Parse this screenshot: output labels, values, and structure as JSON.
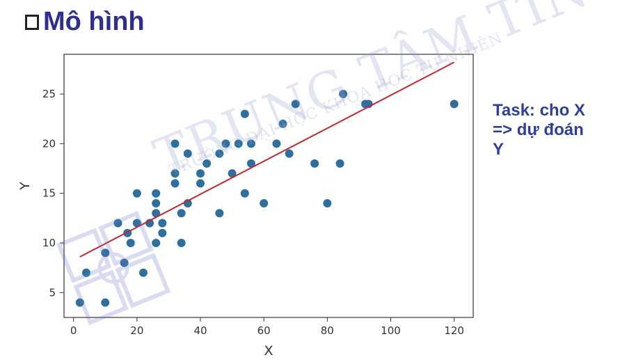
{
  "slide": {
    "title": "Mô hình",
    "task_lines": [
      "Task: cho X",
      "=> dự đoán",
      "Y"
    ]
  },
  "watermark": {
    "main_text": "TRUNG TÂM TIN HỌC",
    "sub_text": "TRƯỜNG ĐẠI HỌC KHOA HỌC TỰ NHIÊN"
  },
  "chart_data": {
    "type": "scatter",
    "xlabel": "X",
    "ylabel": "Y",
    "xlim": [
      -3,
      126
    ],
    "ylim": [
      2.5,
      29
    ],
    "xticks": [
      0,
      20,
      40,
      60,
      80,
      100,
      120
    ],
    "yticks": [
      5,
      10,
      15,
      20,
      25
    ],
    "grid": false,
    "point_color": "#2e6f9e",
    "line_color": "#c0282d",
    "points": [
      {
        "x": 2,
        "y": 4
      },
      {
        "x": 4,
        "y": 7
      },
      {
        "x": 10,
        "y": 4
      },
      {
        "x": 10,
        "y": 9
      },
      {
        "x": 14,
        "y": 12
      },
      {
        "x": 16,
        "y": 8
      },
      {
        "x": 17,
        "y": 11
      },
      {
        "x": 18,
        "y": 10
      },
      {
        "x": 20,
        "y": 12
      },
      {
        "x": 20,
        "y": 15
      },
      {
        "x": 22,
        "y": 7
      },
      {
        "x": 24,
        "y": 12
      },
      {
        "x": 26,
        "y": 10
      },
      {
        "x": 26,
        "y": 13
      },
      {
        "x": 26,
        "y": 14
      },
      {
        "x": 26,
        "y": 15
      },
      {
        "x": 28,
        "y": 11
      },
      {
        "x": 28,
        "y": 12
      },
      {
        "x": 32,
        "y": 16
      },
      {
        "x": 32,
        "y": 17
      },
      {
        "x": 32,
        "y": 20
      },
      {
        "x": 34,
        "y": 10
      },
      {
        "x": 34,
        "y": 13
      },
      {
        "x": 36,
        "y": 14
      },
      {
        "x": 36,
        "y": 19
      },
      {
        "x": 40,
        "y": 16
      },
      {
        "x": 40,
        "y": 17
      },
      {
        "x": 42,
        "y": 18
      },
      {
        "x": 46,
        "y": 13
      },
      {
        "x": 46,
        "y": 19
      },
      {
        "x": 48,
        "y": 20
      },
      {
        "x": 50,
        "y": 17
      },
      {
        "x": 52,
        "y": 20
      },
      {
        "x": 54,
        "y": 15
      },
      {
        "x": 54,
        "y": 23
      },
      {
        "x": 56,
        "y": 18
      },
      {
        "x": 56,
        "y": 20
      },
      {
        "x": 60,
        "y": 14
      },
      {
        "x": 64,
        "y": 20
      },
      {
        "x": 66,
        "y": 22
      },
      {
        "x": 68,
        "y": 19
      },
      {
        "x": 70,
        "y": 24
      },
      {
        "x": 76,
        "y": 18
      },
      {
        "x": 80,
        "y": 14
      },
      {
        "x": 84,
        "y": 18
      },
      {
        "x": 85,
        "y": 25
      },
      {
        "x": 92,
        "y": 24
      },
      {
        "x": 93,
        "y": 24
      },
      {
        "x": 120,
        "y": 24
      }
    ],
    "regression_line": {
      "x": [
        2,
        120
      ],
      "y": [
        8.6,
        28.2
      ]
    }
  }
}
